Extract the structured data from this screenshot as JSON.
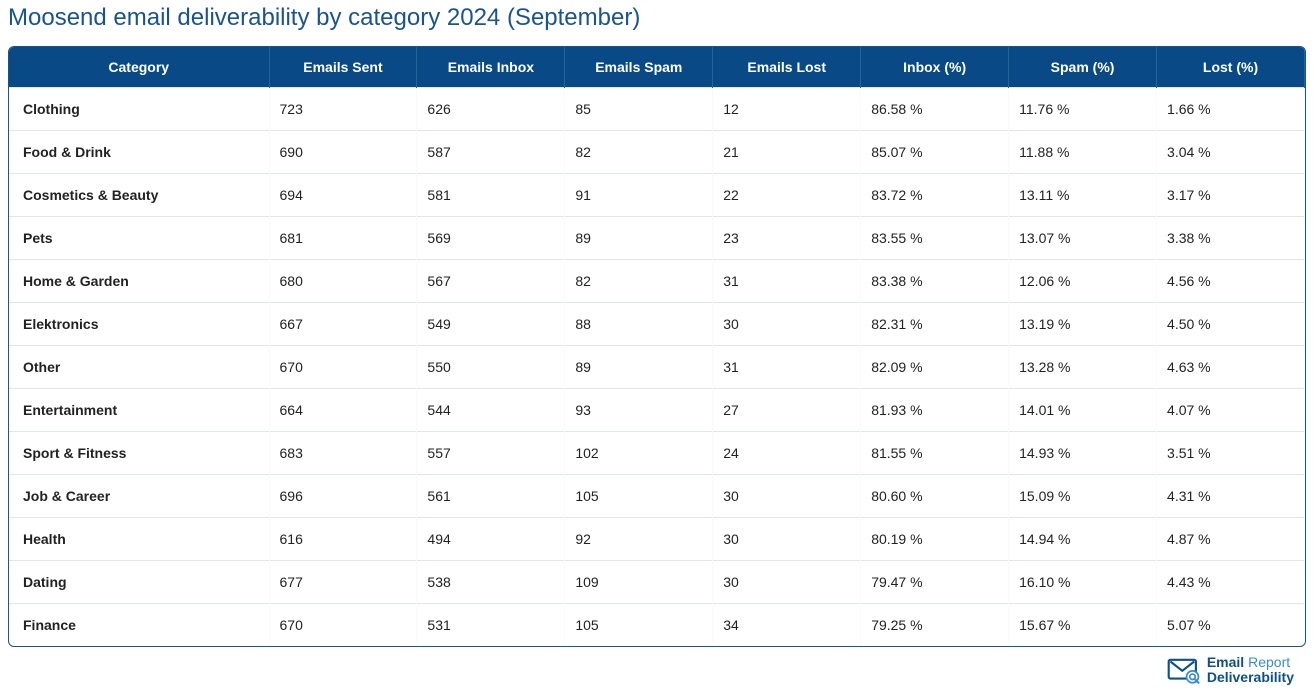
{
  "title": "Moosend email deliverability by category 2024 (September)",
  "table": {
    "header_bg": "#094a86",
    "header_fg": "#ffffff",
    "border_color": "#1a5490",
    "row_divider": "#e0e6ec",
    "columns": [
      "Category",
      "Emails Sent",
      "Emails Inbox",
      "Emails Spam",
      "Emails Lost",
      "Inbox (%)",
      "Spam (%)",
      "Lost (%)"
    ],
    "rows": [
      [
        "Clothing",
        "723",
        "626",
        "85",
        "12",
        "86.58 %",
        "11.76 %",
        "1.66 %"
      ],
      [
        "Food & Drink",
        "690",
        "587",
        "82",
        "21",
        "85.07 %",
        "11.88 %",
        "3.04 %"
      ],
      [
        "Cosmetics & Beauty",
        "694",
        "581",
        "91",
        "22",
        "83.72 %",
        "13.11 %",
        "3.17 %"
      ],
      [
        "Pets",
        "681",
        "569",
        "89",
        "23",
        "83.55 %",
        "13.07 %",
        "3.38 %"
      ],
      [
        "Home & Garden",
        "680",
        "567",
        "82",
        "31",
        "83.38 %",
        "12.06 %",
        "4.56 %"
      ],
      [
        "Elektronics",
        "667",
        "549",
        "88",
        "30",
        "82.31 %",
        "13.19 %",
        "4.50 %"
      ],
      [
        "Other",
        "670",
        "550",
        "89",
        "31",
        "82.09 %",
        "13.28 %",
        "4.63 %"
      ],
      [
        "Entertainment",
        "664",
        "544",
        "93",
        "27",
        "81.93 %",
        "14.01 %",
        "4.07 %"
      ],
      [
        "Sport & Fitness",
        "683",
        "557",
        "102",
        "24",
        "81.55 %",
        "14.93 %",
        "3.51 %"
      ],
      [
        "Job & Career",
        "696",
        "561",
        "105",
        "30",
        "80.60 %",
        "15.09 %",
        "4.31 %"
      ],
      [
        "Health",
        "616",
        "494",
        "92",
        "30",
        "80.19 %",
        "14.94 %",
        "4.87 %"
      ],
      [
        "Dating",
        "677",
        "538",
        "109",
        "30",
        "79.47 %",
        "16.10 %",
        "4.43 %"
      ],
      [
        "Finance",
        "670",
        "531",
        "105",
        "34",
        "79.25 %",
        "15.67 %",
        "5.07 %"
      ]
    ]
  },
  "logo": {
    "line1_bold": "Email",
    "line1_light": "Report",
    "line2": "Deliverability",
    "icon_color": "#0d4f8b",
    "icon_accent": "#3a8adb"
  }
}
